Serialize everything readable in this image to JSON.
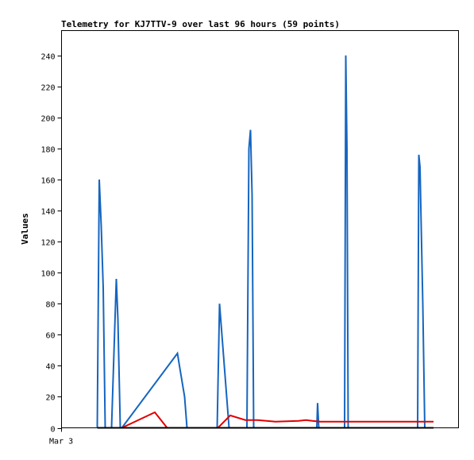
{
  "chart_data": {
    "type": "line",
    "title": "Telemetry for KJ7TTV-9 over last 96 hours (59 points)",
    "xlabel": "",
    "ylabel": "Values",
    "x_tick_labels": [
      "Mar 3"
    ],
    "y_ticks": [
      0,
      20,
      40,
      60,
      80,
      100,
      120,
      140,
      160,
      180,
      200,
      220,
      240
    ],
    "xlim": [
      0,
      100
    ],
    "ylim": [
      0,
      256
    ],
    "grid": false,
    "legend": "none",
    "series": [
      {
        "color": "#1565c0",
        "x": [
          9.0,
          9.5,
          10.0,
          10.5,
          11.0,
          12.6,
          13.8,
          14.2,
          14.8,
          15.2,
          29.2,
          29.7,
          31.0,
          31.6,
          39.2,
          39.8,
          42.2,
          46.7,
          47.2,
          47.6,
          48.0,
          48.4,
          64.3,
          64.5,
          64.8,
          71.3,
          71.6,
          71.9,
          72.2,
          89.7,
          90.0,
          90.3,
          90.6,
          91.0,
          91.5,
          92.0
        ],
        "y": [
          0,
          160,
          130,
          90,
          0,
          0,
          96,
          70,
          0,
          0,
          48,
          40,
          20,
          0,
          0,
          80,
          0,
          0,
          180,
          192,
          150,
          0,
          0,
          16,
          0,
          0,
          240,
          180,
          0,
          0,
          176,
          168,
          130,
          80,
          0,
          0
        ]
      },
      {
        "color": "#e00000",
        "x": [
          9.0,
          15.2,
          23.5,
          26.6,
          39.4,
          42.5,
          46.3,
          49.4,
          53.9,
          59.7,
          61.6,
          63.2,
          65.2,
          66.6,
          80.0,
          93.7
        ],
        "y": [
          0,
          0,
          10,
          0,
          0,
          8,
          5,
          5,
          4,
          4.5,
          5,
          4.5,
          4,
          4,
          4,
          4
        ]
      },
      {
        "color": "#000000",
        "x": [
          9.0,
          93.7
        ],
        "y": [
          0,
          0
        ]
      }
    ]
  }
}
